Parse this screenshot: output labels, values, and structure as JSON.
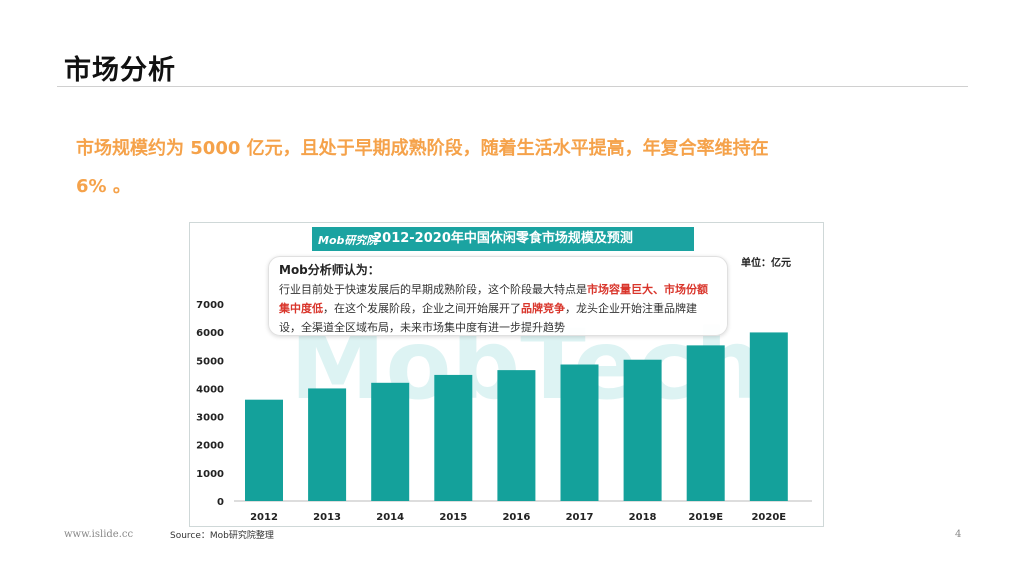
{
  "slide": {
    "title": "市场分析",
    "headline_line1": "市场规模约为 5000 亿元，且处于早期成熟阶段，随着生活水平提高，年复合率维持在",
    "headline_line2": "6% 。",
    "footer_url": "www.islide.cc",
    "source": "Source：Mob研究院整理",
    "page_number": "4"
  },
  "callout": {
    "heading": "Mob分析师认为：",
    "text_a": "行业目前处于快速发展后的早期成熟阶段，这个阶段最大特点是",
    "highlight1": "市场容量巨大、市场份额集中度低",
    "text_b": "，在这个发展阶段，企业之间开始展开了",
    "highlight2": "品牌竞争",
    "text_c": "，龙头企业开始注重品牌建设，全渠道全区域布局，未来市场集中度有进一步提升趋势"
  },
  "chart_data": {
    "type": "bar",
    "title": "2012-2020年中国休闲零食市场规模及预测",
    "brand": "Mob研究院",
    "watermark": "MobTech",
    "unit": "单位：亿元",
    "categories": [
      "2012",
      "2013",
      "2014",
      "2015",
      "2016",
      "2017",
      "2018",
      "2019E",
      "2020E"
    ],
    "values": [
      3600,
      4000,
      4200,
      4480,
      4650,
      4850,
      5020,
      5530,
      5990
    ],
    "yticks": [
      "0",
      "1000",
      "2000",
      "3000",
      "4000",
      "5000",
      "6000",
      "7000"
    ],
    "ylim": [
      0,
      7000
    ],
    "bar_color": "#14a19b"
  }
}
